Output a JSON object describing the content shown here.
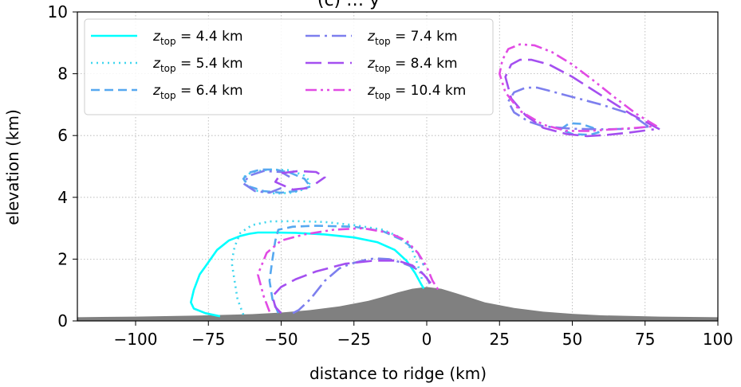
{
  "chart_data": {
    "type": "line",
    "title_partial": "(c) … y",
    "xlabel": "distance to ridge (km)",
    "ylabel": "elevation (km)",
    "xlim": [
      -120,
      100
    ],
    "ylim": [
      0,
      10
    ],
    "x_ticks": [
      -100,
      -75,
      -50,
      -25,
      0,
      25,
      50,
      75,
      100
    ],
    "x_tick_labels": [
      "−100",
      "−75",
      "−50",
      "−25",
      "0",
      "25",
      "50",
      "75",
      "100"
    ],
    "y_ticks": [
      0,
      2,
      4,
      6,
      8,
      10
    ],
    "y_tick_labels": [
      "0",
      "2",
      "4",
      "6",
      "8",
      "10"
    ],
    "grid": true,
    "legend_position": "top-left",
    "terrain": {
      "color": "#808080",
      "x": [
        -120,
        -100,
        -80,
        -60,
        -50,
        -40,
        -30,
        -20,
        -15,
        -10,
        -5,
        0,
        5,
        10,
        15,
        20,
        30,
        40,
        50,
        60,
        80,
        100
      ],
      "y": [
        0.12,
        0.14,
        0.17,
        0.22,
        0.27,
        0.35,
        0.47,
        0.65,
        0.78,
        0.92,
        1.04,
        1.1,
        1.04,
        0.9,
        0.75,
        0.6,
        0.42,
        0.3,
        0.23,
        0.18,
        0.14,
        0.12
      ]
    },
    "series": [
      {
        "legend_base": "z",
        "legend_sub": "top",
        "legend_value": " = 4.4 km",
        "color": "#00ffff",
        "dash": "",
        "paths": [
          {
            "x": [
              -71,
              -76,
              -80,
              -81,
              -80,
              -78,
              -75,
              -72,
              -68,
              -64,
              -61,
              -58,
              -52,
              -45,
              -35,
              -25,
              -17,
              -11,
              -7,
              -4,
              -2,
              -1
            ],
            "y": [
              0.15,
              0.25,
              0.4,
              0.6,
              1.0,
              1.5,
              1.9,
              2.3,
              2.6,
              2.75,
              2.82,
              2.86,
              2.86,
              2.85,
              2.8,
              2.7,
              2.55,
              2.3,
              1.95,
              1.55,
              1.2,
              1.05
            ]
          }
        ]
      },
      {
        "legend_base": "z",
        "legend_sub": "top",
        "legend_value": " = 5.4 km",
        "color": "#3fd6ee",
        "dash": "2,5",
        "paths": [
          {
            "x": [
              -63,
              -65,
              -66,
              -67,
              -66,
              -64,
              -60,
              -54,
              -45,
              -35,
              -25,
              -15,
              -9,
              -5,
              -3,
              -1.5
            ],
            "y": [
              0.2,
              0.7,
              1.3,
              1.9,
              2.4,
              2.85,
              3.1,
              3.22,
              3.23,
              3.2,
              3.1,
              2.95,
              2.7,
              2.3,
              1.8,
              1.3
            ]
          },
          {
            "x": [
              -41,
              -46,
              -52,
              -58,
              -62,
              -63,
              -60,
              -54,
              -47,
              -42,
              -40,
              -41
            ],
            "y": [
              4.3,
              4.15,
              4.12,
              4.2,
              4.4,
              4.65,
              4.82,
              4.9,
              4.88,
              4.7,
              4.5,
              4.3
            ]
          }
        ]
      },
      {
        "legend_base": "z",
        "legend_sub": "top",
        "legend_value": " = 6.4 km",
        "color": "#56a8f0",
        "dash": "11,6",
        "paths": [
          {
            "x": [
              -51,
              -53,
              -54,
              -53,
              -52,
              -51,
              -46,
              -38,
              -25,
              -15,
              -8,
              -3,
              -1
            ],
            "y": [
              0.25,
              0.7,
              1.3,
              2.0,
              2.6,
              2.95,
              3.05,
              3.08,
              3.05,
              2.9,
              2.6,
              2.2,
              1.8
            ]
          },
          {
            "x": [
              -40,
              -45,
              -50,
              -56,
              -61,
              -63,
              -61,
              -57,
              -52,
              -47,
              -42,
              -40
            ],
            "y": [
              4.35,
              4.2,
              4.15,
              4.2,
              4.35,
              4.6,
              4.8,
              4.9,
              4.9,
              4.8,
              4.6,
              4.35
            ]
          },
          {
            "x": [
              46,
              49,
              53,
              57,
              59,
              56,
              50,
              46
            ],
            "y": [
              6.2,
              6.4,
              6.38,
              6.25,
              6.1,
              6.02,
              6.05,
              6.2
            ]
          }
        ]
      },
      {
        "legend_base": "z",
        "legend_sub": "top",
        "legend_value": " = 7.4 km",
        "color": "#7d7fee",
        "dash": "18,6,3,6",
        "paths": [
          {
            "x": [
              -46,
              -44,
              -40,
              -35,
              -30,
              -26,
              -22,
              -20,
              -17,
              -13,
              -9,
              -5,
              -2,
              0,
              1
            ],
            "y": [
              0.25,
              0.35,
              0.7,
              1.3,
              1.7,
              1.85,
              1.95,
              2.0,
              2.02,
              2.0,
              1.9,
              1.75,
              1.6,
              1.4,
              1.2
            ]
          },
          {
            "x": [
              -50,
              -54,
              -59,
              -63,
              -61,
              -56,
              -50,
              -46
            ],
            "y": [
              4.3,
              4.15,
              4.2,
              4.45,
              4.7,
              4.85,
              4.82,
              4.6
            ]
          },
          {
            "x": [
              76,
              70,
              60,
              50,
              42,
              38,
              34,
              30,
              28,
              30,
              35,
              40,
              50,
              60,
              70,
              77
            ],
            "y": [
              6.3,
              6.7,
              7.0,
              7.25,
              7.45,
              7.55,
              7.55,
              7.4,
              7.1,
              6.75,
              6.45,
              6.3,
              6.22,
              6.2,
              6.22,
              6.3
            ]
          }
        ]
      },
      {
        "legend_base": "z",
        "legend_sub": "top",
        "legend_value": " = 8.4 km",
        "color": "#a44ff0",
        "dash": "20,8",
        "paths": [
          {
            "x": [
              -50,
              -52,
              -53,
              -50,
              -45,
              -38,
              -28,
              -18,
              -10,
              -5,
              -1,
              2
            ],
            "y": [
              0.25,
              0.45,
              0.8,
              1.1,
              1.35,
              1.6,
              1.85,
              1.95,
              1.95,
              1.8,
              1.5,
              1.15
            ]
          },
          {
            "x": [
              -41,
              -46,
              -52,
              -50,
              -44,
              -38,
              -35,
              -38
            ],
            "y": [
              4.3,
              4.25,
              4.5,
              4.78,
              4.85,
              4.82,
              4.65,
              4.45
            ]
          },
          {
            "x": [
              80,
              70,
              60,
              50,
              42,
              36,
              32,
              29,
              27,
              29,
              34,
              40,
              48,
              55,
              62,
              70,
              78
            ],
            "y": [
              6.2,
              6.7,
              7.3,
              7.9,
              8.3,
              8.45,
              8.45,
              8.3,
              7.9,
              7.2,
              6.65,
              6.25,
              6.05,
              5.98,
              6.02,
              6.1,
              6.2
            ]
          }
        ]
      },
      {
        "legend_base": "z",
        "legend_sub": "top",
        "legend_value": " = 10.4 km",
        "color": "#e14be4",
        "dash": "14,5,3,5,3,5",
        "paths": [
          {
            "x": [
              -54,
              -56,
              -58,
              -55,
              -50,
              -42,
              -32,
              -22,
              -13,
              -7,
              -3,
              0,
              2,
              4
            ],
            "y": [
              0.3,
              0.8,
              1.5,
              2.2,
              2.6,
              2.8,
              2.95,
              3.0,
              2.85,
              2.6,
              2.2,
              1.75,
              1.3,
              1.0
            ]
          },
          {
            "x": [
              79,
              72,
              65,
              57,
              50,
              43,
              37,
              32,
              28,
              26,
              25,
              27,
              32,
              40,
              48,
              56,
              64,
              72,
              78
            ],
            "y": [
              6.3,
              6.7,
              7.2,
              7.8,
              8.3,
              8.7,
              8.92,
              8.95,
              8.8,
              8.45,
              8.0,
              7.4,
              6.8,
              6.35,
              6.15,
              6.15,
              6.2,
              6.25,
              6.3
            ]
          }
        ]
      }
    ]
  }
}
